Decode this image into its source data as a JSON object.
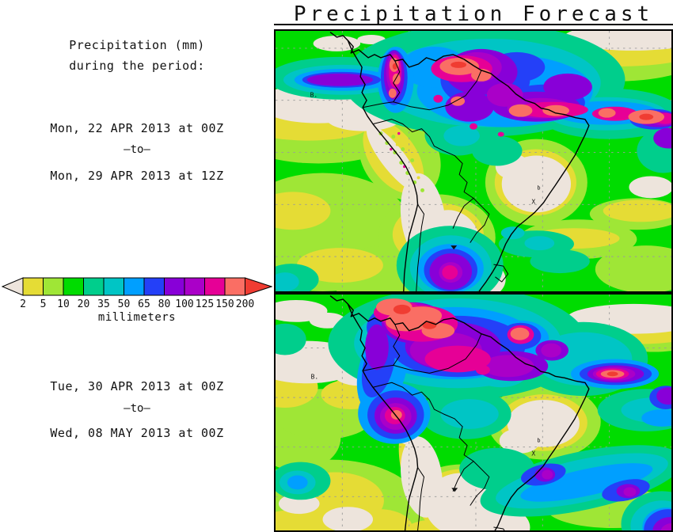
{
  "title": "Precipitation Forecast",
  "sidebar": {
    "heading_line1": "Precipitation (mm)",
    "heading_line2": "during the period:",
    "period1": {
      "from": "Mon, 22 APR 2013 at 00Z",
      "separator": "–to–",
      "to": "Mon, 29 APR 2013 at 12Z"
    },
    "period2": {
      "from": "Tue, 30 APR 2013 at 00Z",
      "separator": "–to–",
      "to": "Wed, 08 MAY 2013 at 00Z"
    }
  },
  "scale": {
    "unit_label": "millimeters",
    "levels": [
      "2",
      "5",
      "10",
      "20",
      "35",
      "50",
      "65",
      "80",
      "100",
      "125",
      "150",
      "200"
    ],
    "below_color": "#EDE4DC",
    "bin_colors": [
      "#E5DC35",
      "#9FE636",
      "#00DC00",
      "#00CE8C",
      "#00C5C5",
      "#009FFF",
      "#2440F8",
      "#8800D8",
      "#AA00C8",
      "#E60096",
      "#FA6E64"
    ],
    "above_color": "#F03C32"
  },
  "markers": {
    "station_b": "B.",
    "feature_b": "b",
    "feature_x": "X"
  },
  "chart_data": {
    "type": "heatmap",
    "title": "Precipitation Forecast",
    "region": "South America and adjacent oceans",
    "unit": "millimeters",
    "scale_levels": [
      2,
      5,
      10,
      20,
      35,
      50,
      65,
      80,
      100,
      125,
      150,
      200
    ],
    "scale_colors": [
      "#EDE4DC",
      "#E5DC35",
      "#9FE636",
      "#00DC00",
      "#00CE8C",
      "#00C5C5",
      "#009FFF",
      "#2440F8",
      "#8800D8",
      "#AA00C8",
      "#E60096",
      "#FA6E64",
      "#F03C32"
    ],
    "legend_position": "left of panels, horizontal double-arrow colorbar",
    "grid": "dashed gray lat/lon lines",
    "panels": [
      {
        "position": "upper",
        "period_from": "Mon, 22 APR 2013 at 00Z",
        "period_to": "Mon, 29 APR 2013 at 12Z",
        "features": [
          "Very heavy precipitation (125-200+ mm) over Colombia, Venezuela, the Guianas and the Atlantic ITCZ band",
          "Purple-magenta streak (80-150 mm) in the northwest Caribbean/Pacific corner",
          "Dry (<2 mm): southeast Pacific off Peru, coastal Peru/Chile strip, central Argentina, interior eastern Brazil",
          "Storm cluster (100-150 mm) over northern Argentina/Paraguay",
          "2-35 mm greens and yellows over most remaining ocean"
        ]
      },
      {
        "position": "lower",
        "period_from": "Tue, 30 APR 2013 at 00Z",
        "period_to": "Wed, 08 MAY 2013 at 00Z",
        "features": [
          "Extreme rain (150-200+ mm) over Venezuela/Colombia with surrounding 80-150 mm shield",
          "Red core (>200 mm) near the northeast Brazilian coast and a 150-200 mm band in the open Atlantic",
          "Magenta-purple cell (125-200 mm) on the Peru/Brazil border",
          "Diagonal 35-125 mm band from Bolivia across southeast Brazil into the Atlantic",
          "Dry (<2 mm): central Argentina, interior eastern Brazil, subtropical Pacific and a band north of the ITCZ"
        ]
      }
    ]
  }
}
